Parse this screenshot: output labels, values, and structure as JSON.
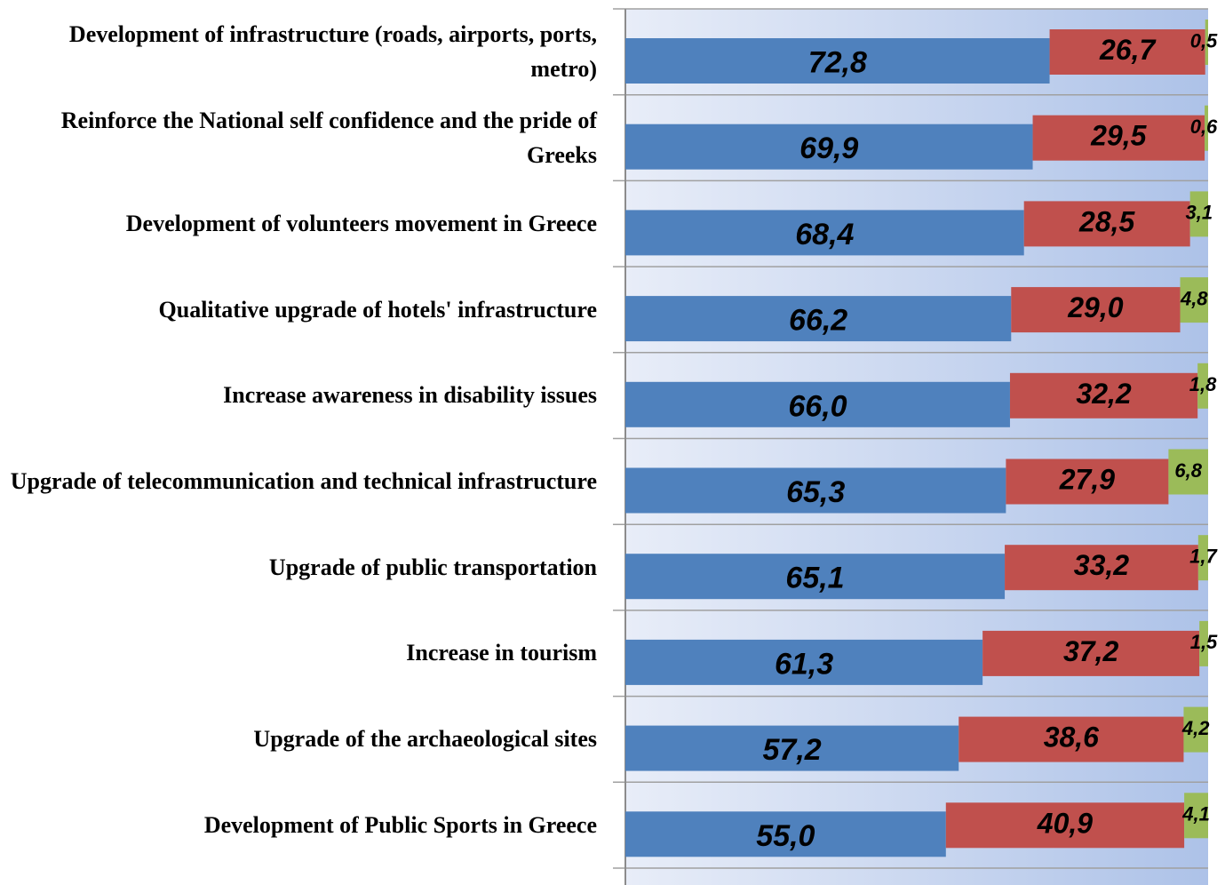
{
  "chart_data": {
    "type": "stacked-bar",
    "categories": [
      "Development of infrastructure (roads, airports, ports, metro)",
      "Reinforce the National self confidence and the pride of Greeks",
      "Development of volunteers movement in Greece",
      "Qualitative upgrade of hotels' infrastructure",
      "Increase awareness in disability issues",
      "Upgrade of telecommunication and technical infrastructure",
      "Upgrade of public transportation",
      "Increase in tourism",
      "Upgrade of the archaeological sites",
      "Development of Public Sports in Greece"
    ],
    "xlim": [
      0,
      100
    ],
    "series": [
      {
        "color": "#4f81bd",
        "values": [
          72.8,
          69.9,
          68.4,
          66.2,
          66.0,
          65.3,
          65.1,
          61.3,
          57.2,
          55.0
        ],
        "value_labels": [
          "72,8",
          "69,9",
          "68,4",
          "66,2",
          "66,0",
          "65,3",
          "65,1",
          "61,3",
          "57,2",
          "55,0"
        ]
      },
      {
        "color": "#c0504d",
        "values": [
          26.7,
          29.5,
          28.5,
          29.0,
          32.2,
          27.9,
          33.2,
          37.2,
          38.6,
          40.9
        ],
        "value_labels": [
          "26,7",
          "29,5",
          "28,5",
          "29,0",
          "32,2",
          "27,9",
          "33,2",
          "37,2",
          "38,6",
          "40,9"
        ]
      },
      {
        "color": "#9bbb59",
        "values": [
          0.5,
          0.6,
          3.1,
          4.8,
          1.8,
          6.8,
          1.7,
          1.5,
          4.2,
          4.1
        ],
        "value_labels": [
          "0,5",
          "0,6",
          "3,1",
          "4,8",
          "1,8",
          "6,8",
          "1,7",
          "1,5",
          "4,2",
          "4,1"
        ]
      }
    ]
  }
}
